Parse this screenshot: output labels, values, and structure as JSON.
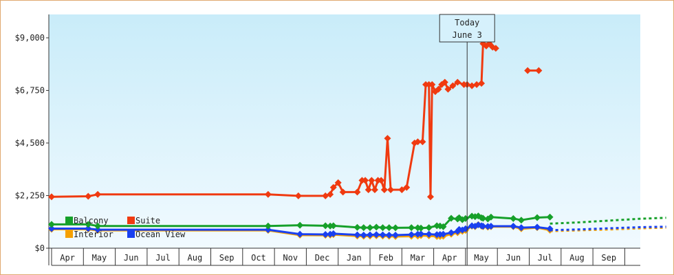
{
  "chart_data": {
    "type": "line",
    "title": "",
    "xlabel": "",
    "ylabel": "",
    "ylim": [
      0,
      10000
    ],
    "yticks": [
      {
        "value": 0,
        "label": "$0"
      },
      {
        "value": 2250,
        "label": "$2,250"
      },
      {
        "value": 4500,
        "label": "$4,500"
      },
      {
        "value": 6750,
        "label": "$6,750"
      },
      {
        "value": 9000,
        "label": "$9,000"
      }
    ],
    "months": [
      "Apr",
      "May",
      "Jun",
      "Jul",
      "Aug",
      "Sep",
      "Oct",
      "Nov",
      "Dec",
      "Jan",
      "Feb",
      "Mar",
      "Apr",
      "May",
      "Jun",
      "Jul",
      "Aug",
      "Sep"
    ],
    "grid": false,
    "legend_position": "bottom-left",
    "today_marker": {
      "line1": "Today",
      "line2": "June 3",
      "t": 13.05
    },
    "series": [
      {
        "name": "Balcony",
        "color": "#16a02a",
        "points": [
          [
            0,
            1020
          ],
          [
            1.15,
            1020
          ],
          [
            1.45,
            950
          ],
          [
            6.8,
            950
          ],
          [
            7.8,
            980
          ],
          [
            8.6,
            960
          ],
          [
            8.75,
            950
          ],
          [
            8.85,
            960
          ],
          [
            9.6,
            890
          ],
          [
            9.8,
            880
          ],
          [
            10.0,
            880
          ],
          [
            10.2,
            900
          ],
          [
            10.4,
            880
          ],
          [
            10.6,
            880
          ],
          [
            10.8,
            870
          ],
          [
            11.3,
            880
          ],
          [
            11.5,
            870
          ],
          [
            11.6,
            860
          ],
          [
            11.85,
            880
          ],
          [
            12.1,
            960
          ],
          [
            12.2,
            950
          ],
          [
            12.3,
            920
          ],
          [
            12.55,
            1280
          ],
          [
            12.75,
            1250
          ],
          [
            12.8,
            1300
          ],
          [
            12.9,
            1220
          ],
          [
            13.0,
            1270
          ],
          [
            13.2,
            1370
          ],
          [
            13.3,
            1350
          ],
          [
            13.4,
            1380
          ],
          [
            13.5,
            1300
          ],
          [
            13.55,
            1280
          ],
          [
            13.7,
            1250
          ],
          [
            13.8,
            1330
          ],
          [
            14.5,
            1270
          ],
          [
            14.75,
            1200
          ],
          [
            15.25,
            1310
          ],
          [
            15.65,
            1330
          ]
        ],
        "projection": [
          [
            15.65,
            1050
          ],
          [
            16.5,
            1100
          ],
          [
            17.5,
            1180
          ],
          [
            18.5,
            1260
          ],
          [
            19.3,
            1300
          ]
        ]
      },
      {
        "name": "Suite",
        "color": "#f03a10",
        "points": [
          [
            0,
            2200
          ],
          [
            1.15,
            2220
          ],
          [
            1.45,
            2300
          ],
          [
            6.8,
            2300
          ],
          [
            7.75,
            2240
          ],
          [
            8.6,
            2240
          ],
          [
            8.75,
            2300
          ],
          [
            8.85,
            2600
          ],
          [
            9.0,
            2800
          ],
          [
            9.15,
            2400
          ],
          [
            9.6,
            2400
          ],
          [
            9.75,
            2900
          ],
          [
            9.85,
            2900
          ],
          [
            9.95,
            2500
          ],
          [
            10.05,
            2900
          ],
          [
            10.15,
            2500
          ],
          [
            10.25,
            2900
          ],
          [
            10.35,
            2900
          ],
          [
            10.45,
            2500
          ],
          [
            10.55,
            4700
          ],
          [
            10.65,
            2500
          ],
          [
            11.0,
            2500
          ],
          [
            11.15,
            2600
          ],
          [
            11.4,
            4500
          ],
          [
            11.5,
            4550
          ],
          [
            11.65,
            4550
          ],
          [
            11.75,
            7000
          ],
          [
            11.85,
            7000
          ],
          [
            11.9,
            2200
          ],
          [
            11.95,
            7000
          ],
          [
            12.05,
            6700
          ],
          [
            12.15,
            6800
          ],
          [
            12.25,
            7000
          ],
          [
            12.35,
            7100
          ],
          [
            12.45,
            6800
          ],
          [
            12.6,
            6950
          ],
          [
            12.75,
            7100
          ],
          [
            12.95,
            7000
          ],
          [
            13.05,
            7000
          ],
          [
            13.2,
            6950
          ],
          [
            13.35,
            7000
          ],
          [
            13.5,
            7050
          ],
          [
            13.55,
            8750
          ],
          [
            13.65,
            8650
          ],
          [
            13.75,
            8750
          ],
          [
            13.85,
            8600
          ],
          [
            13.95,
            8550
          ]
        ],
        "segments": [
          [
            [
              14.95,
              7600
            ],
            [
              15.3,
              7600
            ]
          ]
        ]
      },
      {
        "name": "Interior",
        "color": "#f5a000",
        "points": [
          [
            0,
            810
          ],
          [
            1.15,
            810
          ],
          [
            1.45,
            760
          ],
          [
            6.8,
            760
          ],
          [
            7.8,
            560
          ],
          [
            8.6,
            550
          ],
          [
            8.75,
            560
          ],
          [
            8.85,
            580
          ],
          [
            9.6,
            520
          ],
          [
            9.8,
            510
          ],
          [
            10.0,
            520
          ],
          [
            10.2,
            530
          ],
          [
            10.4,
            520
          ],
          [
            10.6,
            510
          ],
          [
            10.8,
            500
          ],
          [
            11.3,
            510
          ],
          [
            11.5,
            520
          ],
          [
            11.6,
            540
          ],
          [
            11.85,
            530
          ],
          [
            12.1,
            500
          ],
          [
            12.2,
            500
          ],
          [
            12.3,
            510
          ],
          [
            12.55,
            600
          ],
          [
            12.75,
            660
          ],
          [
            12.8,
            740
          ],
          [
            12.9,
            720
          ],
          [
            13.0,
            760
          ],
          [
            13.2,
            940
          ],
          [
            13.3,
            920
          ],
          [
            13.4,
            1010
          ],
          [
            13.5,
            940
          ],
          [
            13.55,
            920
          ],
          [
            13.7,
            900
          ],
          [
            13.8,
            920
          ],
          [
            14.5,
            920
          ],
          [
            14.75,
            830
          ],
          [
            15.25,
            880
          ],
          [
            15.65,
            770
          ]
        ],
        "projection": [
          [
            15.65,
            730
          ],
          [
            16.5,
            760
          ],
          [
            17.5,
            800
          ],
          [
            18.5,
            850
          ],
          [
            19.3,
            880
          ]
        ]
      },
      {
        "name": "Ocean View",
        "color": "#1940f0",
        "points": [
          [
            0,
            840
          ],
          [
            1.15,
            840
          ],
          [
            1.45,
            790
          ],
          [
            6.8,
            790
          ],
          [
            7.8,
            600
          ],
          [
            8.6,
            590
          ],
          [
            8.75,
            600
          ],
          [
            8.85,
            620
          ],
          [
            9.6,
            570
          ],
          [
            9.8,
            560
          ],
          [
            10.0,
            570
          ],
          [
            10.2,
            580
          ],
          [
            10.4,
            570
          ],
          [
            10.6,
            560
          ],
          [
            10.8,
            560
          ],
          [
            11.3,
            580
          ],
          [
            11.5,
            600
          ],
          [
            11.6,
            610
          ],
          [
            11.85,
            600
          ],
          [
            12.1,
            580
          ],
          [
            12.2,
            590
          ],
          [
            12.3,
            600
          ],
          [
            12.55,
            660
          ],
          [
            12.75,
            720
          ],
          [
            12.8,
            800
          ],
          [
            12.9,
            780
          ],
          [
            13.0,
            830
          ],
          [
            13.2,
            960
          ],
          [
            13.3,
            940
          ],
          [
            13.4,
            1000
          ],
          [
            13.5,
            960
          ],
          [
            13.55,
            940
          ],
          [
            13.7,
            930
          ],
          [
            13.8,
            940
          ],
          [
            14.5,
            940
          ],
          [
            14.75,
            880
          ],
          [
            15.25,
            900
          ],
          [
            15.65,
            830
          ]
        ],
        "projection": [
          [
            15.65,
            770
          ],
          [
            16.5,
            800
          ],
          [
            17.5,
            850
          ],
          [
            18.5,
            900
          ],
          [
            19.3,
            920
          ]
        ]
      }
    ]
  },
  "legend": [
    {
      "label": "Balcony",
      "color": "#16a02a"
    },
    {
      "label": "Suite",
      "color": "#f03a10"
    },
    {
      "label": "Interior",
      "color": "#f5a000"
    },
    {
      "label": "Ocean View",
      "color": "#1940f0"
    }
  ]
}
